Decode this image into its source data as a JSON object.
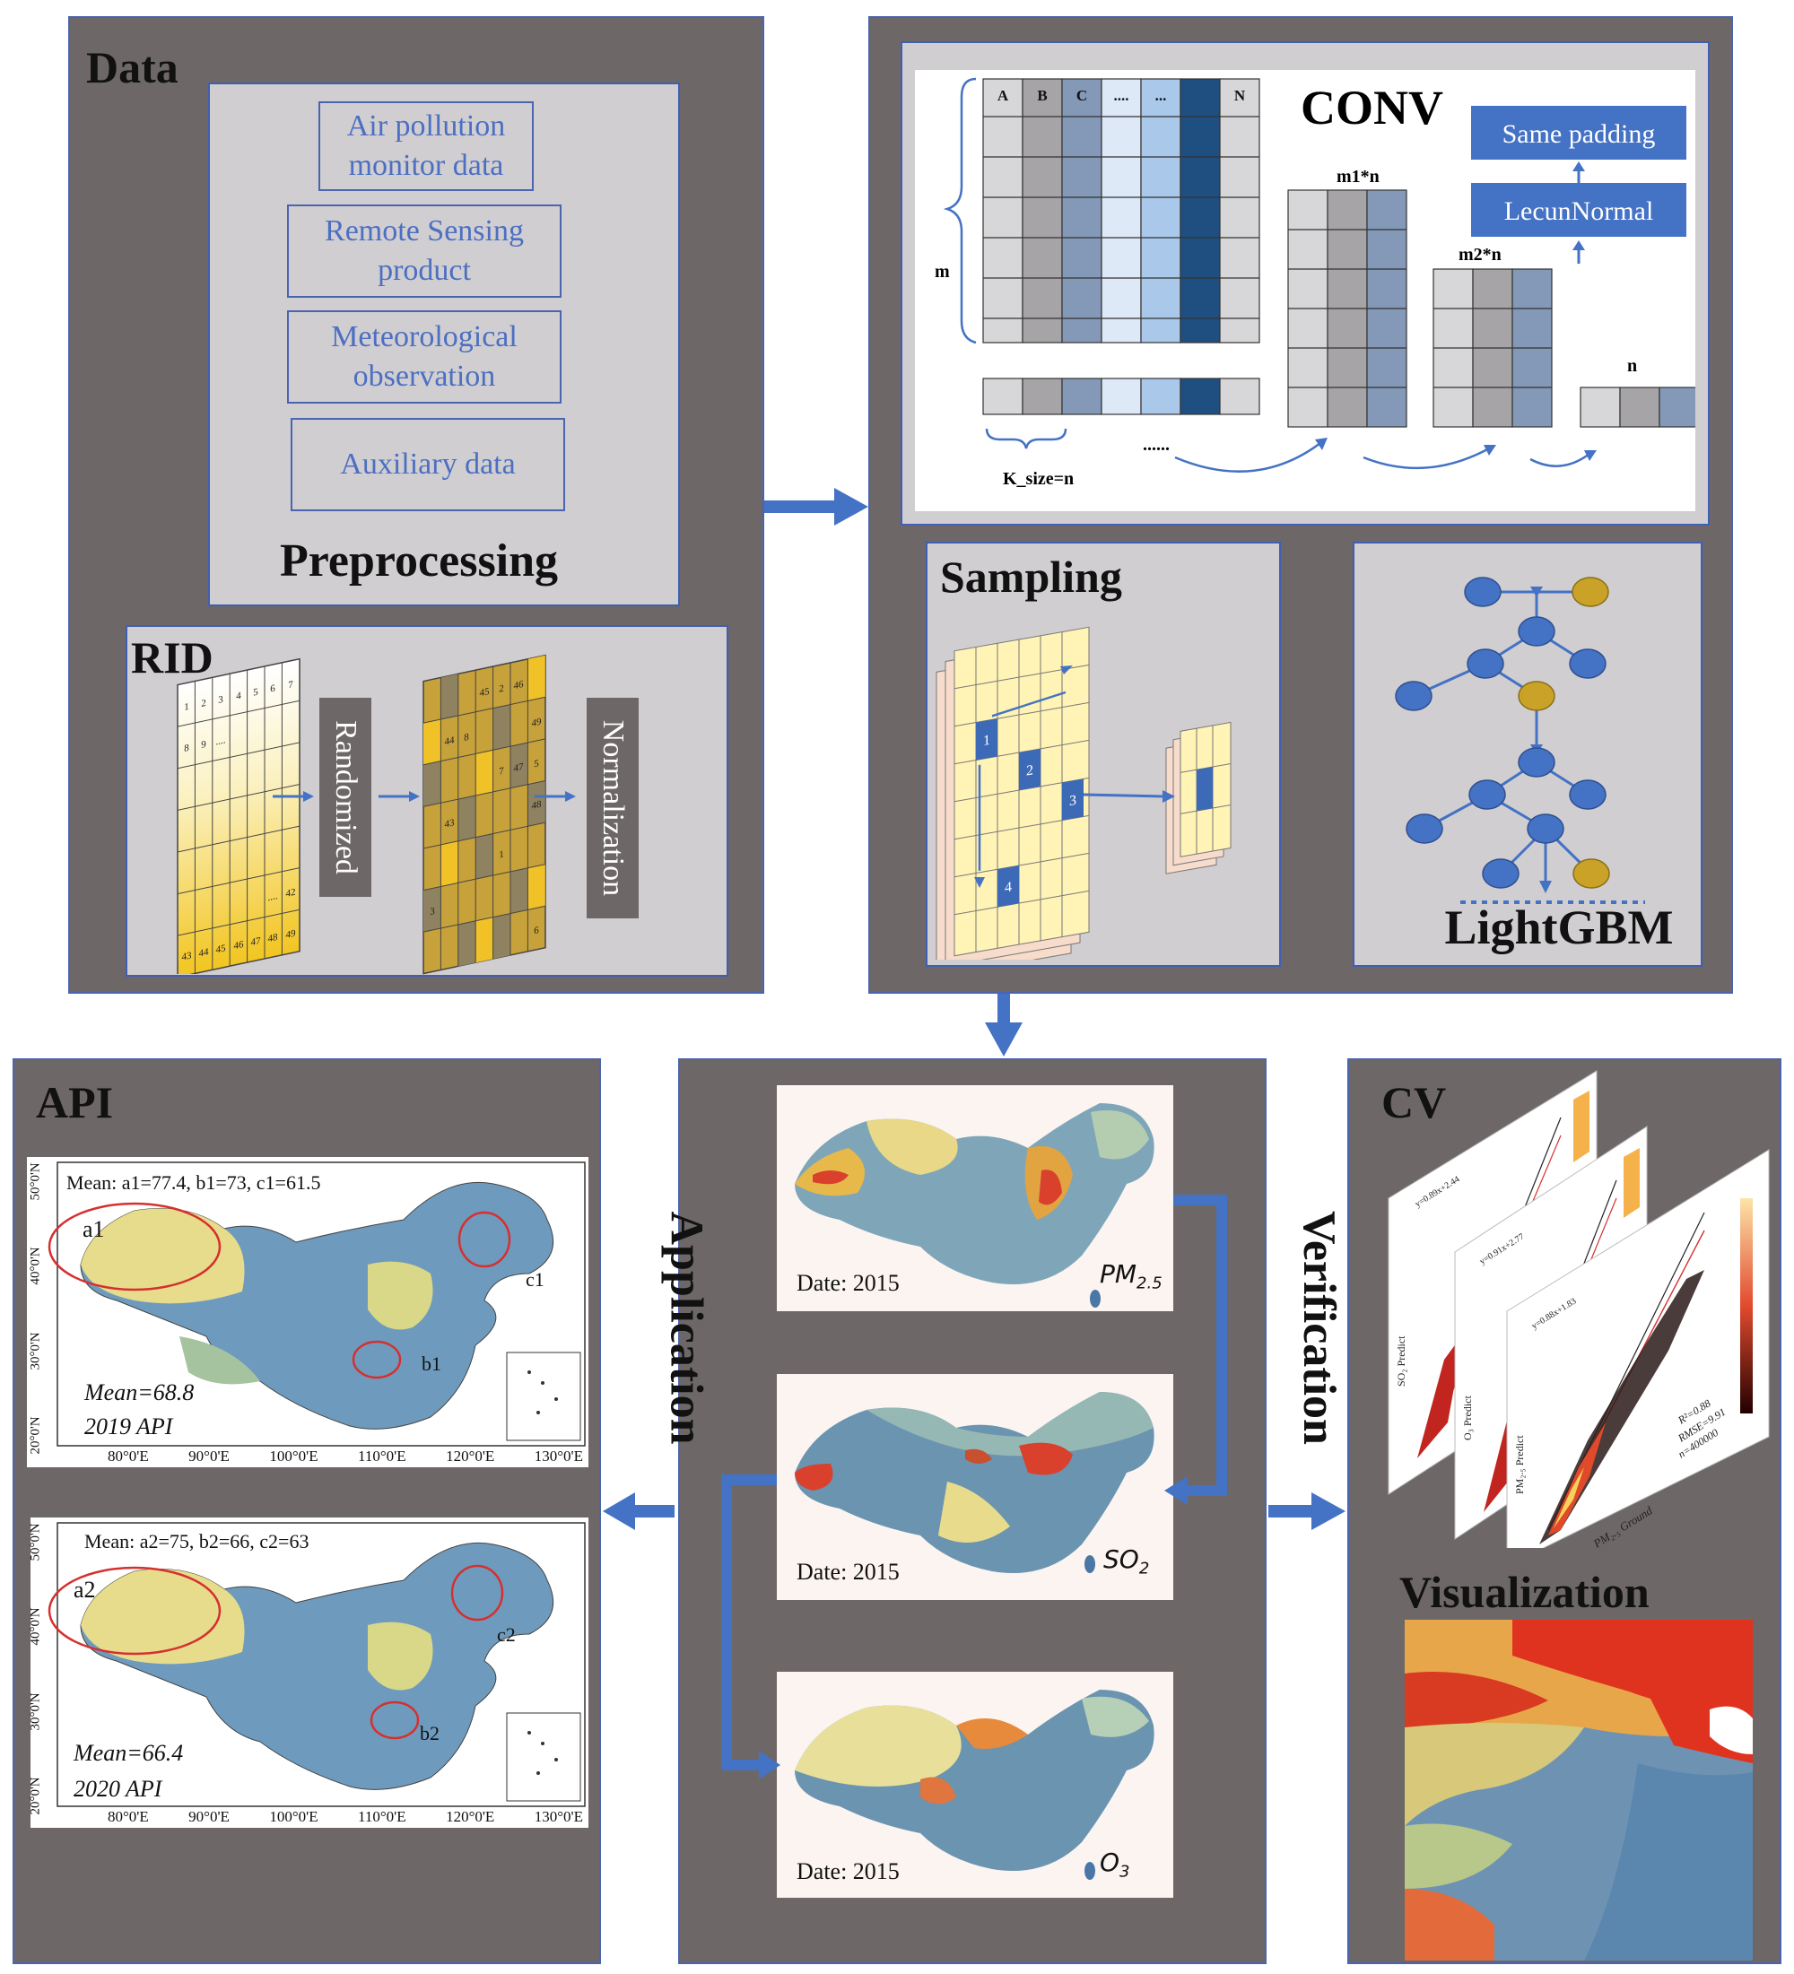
{
  "data_panel": {
    "title": "Data",
    "items": [
      "Air pollution monitor data",
      "Remote Sensing product",
      "Meteorological observation",
      "Auxiliary data"
    ],
    "footer": "Preprocessing"
  },
  "rid_panel": {
    "title": "RID",
    "step1": "Randomized",
    "step2": "Normalization",
    "grid_left_numbers": [
      "1",
      "2",
      "3",
      "4",
      "5",
      "6",
      "7",
      "8",
      "9",
      "....",
      "42",
      "43",
      "44",
      "45",
      "46",
      "47",
      "48",
      "49"
    ],
    "grid_right_numbers": [
      "45",
      "2",
      "46",
      "44",
      "8",
      "49",
      "7",
      "47",
      "5",
      "48",
      "43",
      "1",
      "3",
      "6"
    ]
  },
  "conv_panel": {
    "title": "CONV",
    "columns": [
      "A",
      "B",
      "C",
      "....",
      "...",
      "N"
    ],
    "m_label": "m",
    "m1_label": "m1*n",
    "m2_label": "m2*n",
    "n_label": "n",
    "dots": "......",
    "ksize_label": "K_size=n",
    "box1": "Same padding",
    "box2": "LecunNormal"
  },
  "sampling_panel": {
    "title": "Sampling",
    "cells": [
      "1",
      "2",
      "3",
      "4"
    ]
  },
  "lightgbm_panel": {
    "title": "LightGBM"
  },
  "application": {
    "label": "Application",
    "maps": [
      {
        "date": "Date: 2015",
        "pollutant": "PM",
        "sub": "2.5"
      },
      {
        "date": "Date: 2015",
        "pollutant": "SO",
        "sub": "2"
      },
      {
        "date": "Date: 2015",
        "pollutant": "O",
        "sub": "3"
      }
    ]
  },
  "api_panel": {
    "title": "API",
    "maps": [
      {
        "mean_header": "Mean: a1=77.4, b1=73, c1=61.5",
        "mean": "Mean=68.8",
        "year": "2019 API",
        "a": "a1",
        "b": "b1",
        "c": "c1"
      },
      {
        "mean_header": "Mean:  a2=75, b2=66, c2=63",
        "mean": "Mean=66.4",
        "year": "2020 API",
        "a": "a2",
        "b": "b2",
        "c": "c2"
      }
    ],
    "lon_ticks": [
      "80°0'E",
      "90°0'E",
      "100°0'E",
      "110°0'E",
      "120°0'E",
      "130°0'E"
    ],
    "lat_ticks": [
      "50°0'N",
      "40°0'N",
      "30°0'N",
      "20°0'N"
    ]
  },
  "cv_panel": {
    "title": "CV",
    "verification": "Verification",
    "visualization": "Visualization",
    "eq1": "y=0.89x+2.44",
    "eq2": "y=0.91x+2.77",
    "eq3": "y=0.88x+1.83",
    "r2": "R²=0.88",
    "rmse": "RMSE=9.91",
    "n": "n=400000",
    "xlabel": "PM₂.₅ Ground",
    "ylabel1": "SO₂ Predict",
    "ylabel2": "O₃ Predict",
    "ylabel3": "PM₂.₅ Predict"
  },
  "colors": {
    "panel": "#6d6867",
    "subpanel": "#d0ced0",
    "accent_blue": "#4472c4",
    "text_blue": "#4c6fc2",
    "tree_node": "#4472c4",
    "tree_leaf": "#c9a227"
  }
}
